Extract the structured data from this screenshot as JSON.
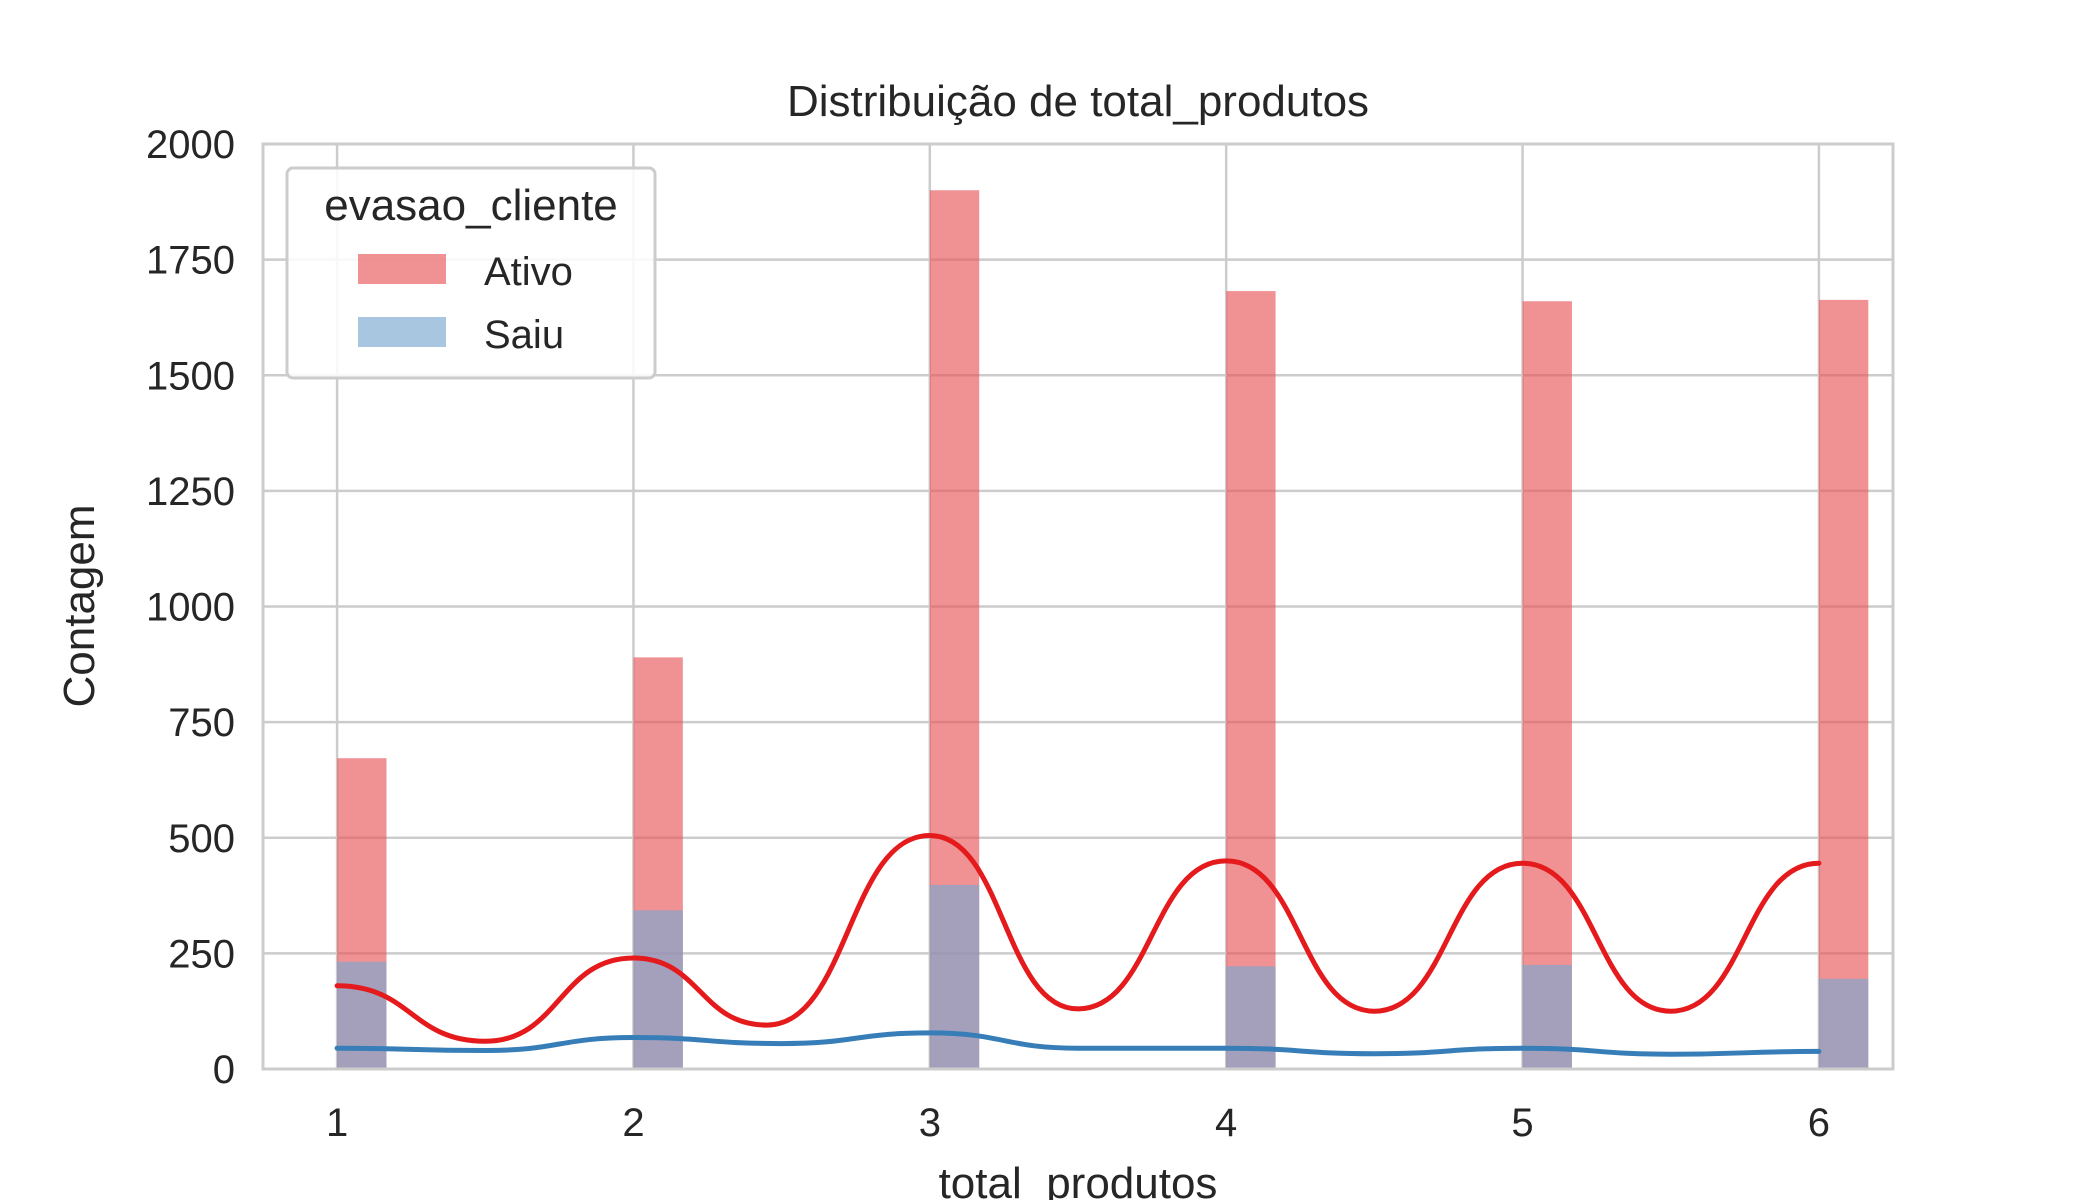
{
  "chart_data": {
    "type": "bar",
    "title": "Distribuição de total_produtos",
    "xlabel": "total_produtos",
    "ylabel": "Contagem",
    "x_ticks": [
      "1",
      "2",
      "3",
      "4",
      "5",
      "6"
    ],
    "y_ticks": [
      "0",
      "250",
      "500",
      "750",
      "1000",
      "1250",
      "1500",
      "1750",
      "2000"
    ],
    "xlim": [
      0.75,
      6.25
    ],
    "ylim": [
      0,
      2000
    ],
    "grid": true,
    "legend": {
      "title": "evasao_cliente",
      "placement": "top-left",
      "entries": [
        "Ativo",
        "Saiu"
      ]
    },
    "x": [
      1,
      2,
      3,
      4,
      5,
      6
    ],
    "series": [
      {
        "name": "Ativo",
        "color": "#e8585a",
        "values": [
          672,
          890,
          1900,
          1682,
          1660,
          1663
        ],
        "kde_x": [
          1.0,
          1.5,
          2.0,
          2.45,
          3.0,
          3.5,
          4.0,
          4.5,
          5.0,
          5.5,
          6.0
        ],
        "kde_y": [
          180,
          60,
          240,
          95,
          505,
          130,
          450,
          125,
          445,
          125,
          445
        ],
        "kde_color": "#e41a1c"
      },
      {
        "name": "Saiu",
        "color": "#7ba7d1",
        "values": [
          232,
          343,
          398,
          222,
          225,
          195
        ],
        "kde_x": [
          1.0,
          1.5,
          2.0,
          2.5,
          3.0,
          3.5,
          4.0,
          4.5,
          5.0,
          5.5,
          6.0
        ],
        "kde_y": [
          45,
          40,
          68,
          55,
          78,
          45,
          45,
          33,
          45,
          32,
          38
        ],
        "kde_color": "#377eb8"
      }
    ]
  }
}
